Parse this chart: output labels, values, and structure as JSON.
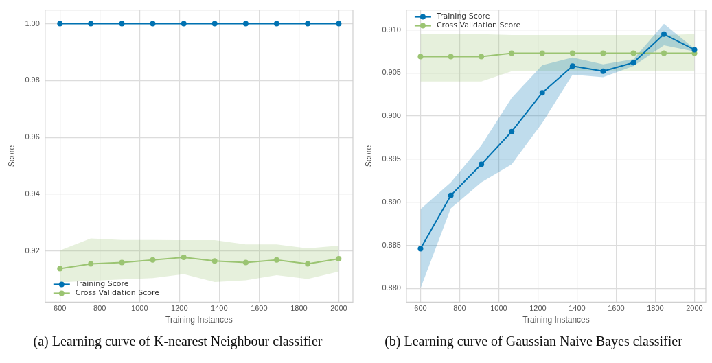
{
  "chart_data": [
    {
      "type": "line",
      "title": "(a) Learning curve of K-nearest Neighbour classifier",
      "xlabel": "Training Instances",
      "ylabel": "Score",
      "xlim": [
        526,
        2071
      ],
      "ylim": [
        0.902,
        1.0048
      ],
      "xticks": [
        600,
        800,
        1000,
        1200,
        1400,
        1600,
        1800,
        2000
      ],
      "yticks": [
        {
          "value": 0.92,
          "label": "0.92"
        },
        {
          "value": 0.94,
          "label": "0.94"
        },
        {
          "value": 0.96,
          "label": "0.96"
        },
        {
          "value": 0.98,
          "label": "0.98"
        },
        {
          "value": 1,
          "label": "1.00"
        }
      ],
      "grid": true,
      "legend": "bottom left",
      "marker": "circle",
      "x": [
        600,
        755,
        911,
        1066,
        1222,
        1377,
        1533,
        1688,
        1844,
        2000
      ],
      "series": [
        {
          "name": "Training Score",
          "color": "#0072b2",
          "values": [
            1,
            1,
            1,
            1,
            1,
            1,
            1,
            1,
            1,
            1
          ]
        },
        {
          "name": "Cross Validation Score",
          "color": "#9bc472",
          "values": [
            0.9138,
            0.9155,
            0.916,
            0.9169,
            0.9178,
            0.9165,
            0.916,
            0.9169,
            0.9155,
            0.9173
          ],
          "lower": [
            0.909,
            0.9095,
            0.91,
            0.9105,
            0.9119,
            0.9091,
            0.9097,
            0.9115,
            0.9102,
            0.9128
          ],
          "upper": [
            0.9202,
            0.9244,
            0.9239,
            0.9239,
            0.9238,
            0.9238,
            0.9223,
            0.9223,
            0.9209,
            0.9219
          ]
        }
      ]
    },
    {
      "type": "line",
      "title": "(b) Learning curve of Gaussian Naive Bayes classifier",
      "xlabel": "Training Instances",
      "ylabel": "Score",
      "xlim": [
        528,
        2058
      ],
      "ylim": [
        0.8784,
        0.9123
      ],
      "xticks": [
        600,
        800,
        1000,
        1200,
        1400,
        1600,
        1800,
        2000
      ],
      "yticks": [
        {
          "value": 0.88,
          "label": "0.880"
        },
        {
          "value": 0.885,
          "label": "0.885"
        },
        {
          "value": 0.89,
          "label": "0.890"
        },
        {
          "value": 0.895,
          "label": "0.895"
        },
        {
          "value": 0.9,
          "label": "0.900"
        },
        {
          "value": 0.905,
          "label": "0.905"
        },
        {
          "value": 0.91,
          "label": "0.910"
        }
      ],
      "grid": true,
      "legend": "top left",
      "marker": "circle",
      "x": [
        600,
        755,
        911,
        1066,
        1222,
        1377,
        1533,
        1688,
        1844,
        2000
      ],
      "series": [
        {
          "name": "Training Score",
          "color": "#0072b2",
          "values": [
            0.8846,
            0.8908,
            0.8944,
            0.8982,
            0.9027,
            0.9058,
            0.9052,
            0.9062,
            0.9095,
            0.9077
          ],
          "lower": [
            0.88,
            0.8893,
            0.8923,
            0.8944,
            0.8992,
            0.9048,
            0.9045,
            0.9058,
            0.9082,
            0.9075
          ],
          "upper": [
            0.8892,
            0.8923,
            0.8966,
            0.9021,
            0.9059,
            0.9068,
            0.906,
            0.9066,
            0.9107,
            0.9078
          ]
        },
        {
          "name": "Cross Validation Score",
          "color": "#9bc472",
          "values": [
            0.9069,
            0.9069,
            0.9069,
            0.9073,
            0.9073,
            0.9073,
            0.9073,
            0.9073,
            0.9073,
            0.9073
          ],
          "lower": [
            0.904,
            0.904,
            0.904,
            0.9052,
            0.9052,
            0.9052,
            0.9052,
            0.9052,
            0.9052,
            0.9052
          ],
          "upper": [
            0.9095,
            0.9095,
            0.9095,
            0.9094,
            0.9094,
            0.9094,
            0.9094,
            0.9094,
            0.9094,
            0.9095
          ]
        }
      ]
    }
  ]
}
